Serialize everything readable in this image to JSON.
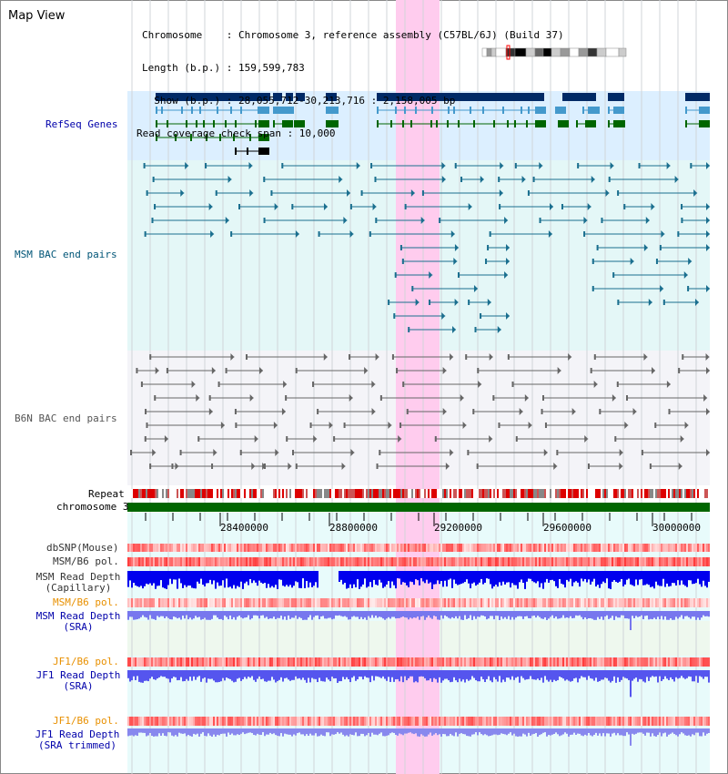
{
  "view_title": "Map View",
  "info": {
    "chromosome_line": "Chromosome    : Chromosome 3, reference assembly (C57BL/6J) (Build 37)",
    "length_line": "Length (b.p.) : 159,599,783",
    "show_line": "  Show (b.p.) : 28,055,712-30,213,716 : 2,158,005 bp",
    "coverage_line": "Read coverage check span : 10,000"
  },
  "tracks": {
    "refseq": "RefSeq Genes",
    "msm_bac": "MSM BAC end pairs",
    "b6n_bac": "B6N BAC end pairs",
    "repeat": "Repeat",
    "chromosome": "chromosome 3",
    "dbsnp": "dbSNP(Mouse)",
    "msm_b6_pol_1": "MSM/B6 pol.",
    "msm_depth_cap_1": "MSM Read Depth",
    "msm_depth_cap_2": "(Capillary)",
    "msm_b6_pol_2": "MSM/B6 pol.",
    "msm_depth_sra_1": "MSM Read Depth",
    "msm_depth_sra_2": "(SRA)",
    "jf1_b6_pol_1": "JF1/B6 pol.",
    "jf1_depth_sra_1": "JF1 Read Depth",
    "jf1_depth_sra_2": "(SRA)",
    "jf1_b6_pol_2": "JF1/B6 pol.",
    "jf1_depth_trim_1": "JF1 Read Depth",
    "jf1_depth_trim_2": "(SRA trimmed)"
  },
  "axis_ticks": [
    "28400000",
    "28800000",
    "29200000",
    "29600000",
    "30000000"
  ],
  "colors": {
    "refseq_label": "#0000aa",
    "msm_label": "#005577",
    "b6n_label": "#555555",
    "pol_label_orange": "#e89000",
    "depth_label_blue": "#0000aa",
    "highlight": "#ffccee",
    "gene_dark": "#002a66",
    "gene_light": "#4499cc",
    "gene_green": "#006600",
    "depth_blue": "#0000ee",
    "repeat_red": "#dd0000"
  }
}
